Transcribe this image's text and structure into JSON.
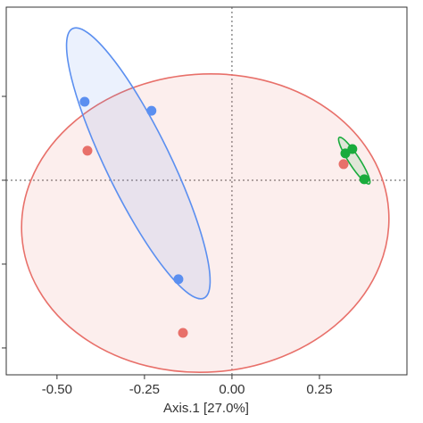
{
  "chart_data": {
    "type": "scatter",
    "xlabel": "Axis.1 [27.0%]",
    "xlim": [
      -0.645,
      0.5
    ],
    "ylim": [
      -0.58,
      0.516
    ],
    "xticks": [
      {
        "value": -0.5,
        "label": "-0.50"
      },
      {
        "value": -0.25,
        "label": "-0.25"
      },
      {
        "value": 0,
        "label": "0.00"
      },
      {
        "value": 0.25,
        "label": "0.25"
      }
    ],
    "yticks": [
      -0.5,
      -0.25,
      0,
      0.25
    ],
    "zero_lines": true,
    "series": [
      {
        "color": "#5b8ff0",
        "x": [
          -0.421,
          -0.23,
          -0.153
        ],
        "values": [
          0.234,
          0.207,
          -0.295
        ]
      },
      {
        "color": "#e8706a",
        "x": [
          -0.413,
          -0.14,
          0.319
        ],
        "values": [
          0.088,
          -0.455,
          0.048
        ]
      },
      {
        "color": "#1aab3c",
        "x": [
          0.324,
          0.344,
          0.378
        ],
        "values": [
          0.08,
          0.093,
          0.003
        ]
      }
    ]
  }
}
